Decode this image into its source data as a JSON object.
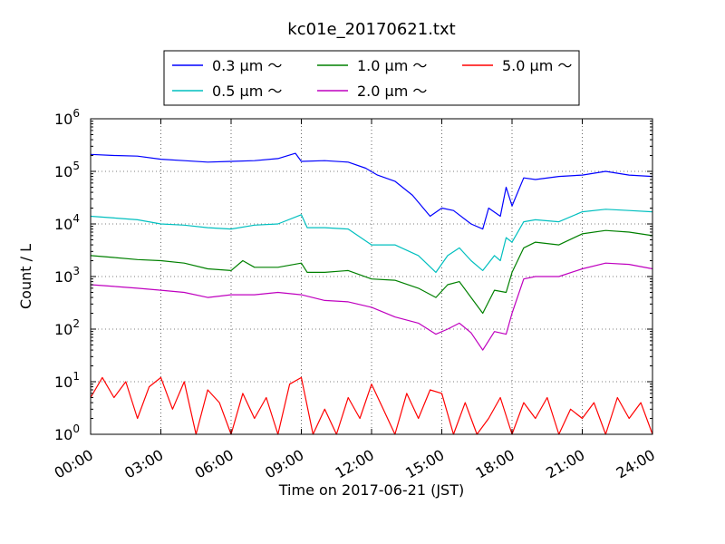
{
  "chart_data": {
    "type": "line",
    "title": "kc01e_20170621.txt",
    "xlabel": "Time on 2017-06-21 (JST)",
    "ylabel": "Count / L",
    "yscale": "log",
    "ylim": [
      1,
      1000000
    ],
    "xlim": [
      "00:00",
      "24:00"
    ],
    "x_ticks": [
      "00:00",
      "03:00",
      "06:00",
      "09:00",
      "12:00",
      "15:00",
      "18:00",
      "21:00",
      "24:00"
    ],
    "y_ticks": [
      {
        "base": "10",
        "exp": "0"
      },
      {
        "base": "10",
        "exp": "1"
      },
      {
        "base": "10",
        "exp": "2"
      },
      {
        "base": "10",
        "exp": "3"
      },
      {
        "base": "10",
        "exp": "4"
      },
      {
        "base": "10",
        "exp": "5"
      },
      {
        "base": "10",
        "exp": "6"
      }
    ],
    "grid": true,
    "legend_position": "above plot",
    "series": [
      {
        "name": "0.3 μm ～",
        "color": "#0000ff",
        "points": [
          [
            "00:00",
            210000
          ],
          [
            "01:00",
            200000
          ],
          [
            "02:00",
            195000
          ],
          [
            "03:00",
            170000
          ],
          [
            "04:00",
            160000
          ],
          [
            "05:00",
            150000
          ],
          [
            "06:00",
            155000
          ],
          [
            "07:00",
            160000
          ],
          [
            "08:00",
            175000
          ],
          [
            "08:45",
            220000
          ],
          [
            "09:00",
            155000
          ],
          [
            "10:00",
            160000
          ],
          [
            "11:00",
            150000
          ],
          [
            "11:45",
            115000
          ],
          [
            "12:15",
            85000
          ],
          [
            "13:00",
            65000
          ],
          [
            "13:45",
            35000
          ],
          [
            "14:30",
            14000
          ],
          [
            "15:00",
            20000
          ],
          [
            "15:30",
            18000
          ],
          [
            "16:15",
            10000
          ],
          [
            "16:45",
            8000
          ],
          [
            "17:00",
            20000
          ],
          [
            "17:30",
            14000
          ],
          [
            "17:45",
            50000
          ],
          [
            "18:00",
            22000
          ],
          [
            "18:30",
            75000
          ],
          [
            "19:00",
            70000
          ],
          [
            "20:00",
            80000
          ],
          [
            "21:00",
            85000
          ],
          [
            "22:00",
            100000
          ],
          [
            "23:00",
            85000
          ],
          [
            "24:00",
            80000
          ]
        ]
      },
      {
        "name": "0.5 μm ～",
        "color": "#00bfbf",
        "points": [
          [
            "00:00",
            14000
          ],
          [
            "01:00",
            13000
          ],
          [
            "02:00",
            12000
          ],
          [
            "03:00",
            10000
          ],
          [
            "04:00",
            9500
          ],
          [
            "05:00",
            8500
          ],
          [
            "06:00",
            8000
          ],
          [
            "07:00",
            9500
          ],
          [
            "08:00",
            10000
          ],
          [
            "09:00",
            15000
          ],
          [
            "09:15",
            8500
          ],
          [
            "10:00",
            8500
          ],
          [
            "11:00",
            8000
          ],
          [
            "12:00",
            4000
          ],
          [
            "13:00",
            4000
          ],
          [
            "14:00",
            2500
          ],
          [
            "14:45",
            1200
          ],
          [
            "15:15",
            2500
          ],
          [
            "15:45",
            3500
          ],
          [
            "16:15",
            2000
          ],
          [
            "16:45",
            1300
          ],
          [
            "17:15",
            2500
          ],
          [
            "17:30",
            2000
          ],
          [
            "17:45",
            5500
          ],
          [
            "18:00",
            4500
          ],
          [
            "18:30",
            11000
          ],
          [
            "19:00",
            12000
          ],
          [
            "20:00",
            11000
          ],
          [
            "21:00",
            17000
          ],
          [
            "22:00",
            19000
          ],
          [
            "23:00",
            18000
          ],
          [
            "24:00",
            17000
          ]
        ]
      },
      {
        "name": "1.0 μm ～",
        "color": "#008000",
        "points": [
          [
            "00:00",
            2500
          ],
          [
            "01:00",
            2300
          ],
          [
            "02:00",
            2100
          ],
          [
            "03:00",
            2000
          ],
          [
            "04:00",
            1800
          ],
          [
            "05:00",
            1400
          ],
          [
            "06:00",
            1300
          ],
          [
            "06:30",
            2000
          ],
          [
            "07:00",
            1500
          ],
          [
            "08:00",
            1500
          ],
          [
            "09:00",
            1800
          ],
          [
            "09:15",
            1200
          ],
          [
            "10:00",
            1200
          ],
          [
            "11:00",
            1300
          ],
          [
            "12:00",
            900
          ],
          [
            "13:00",
            850
          ],
          [
            "14:00",
            600
          ],
          [
            "14:45",
            400
          ],
          [
            "15:15",
            700
          ],
          [
            "15:45",
            800
          ],
          [
            "16:15",
            400
          ],
          [
            "16:45",
            200
          ],
          [
            "17:15",
            550
          ],
          [
            "17:45",
            500
          ],
          [
            "18:00",
            1200
          ],
          [
            "18:30",
            3500
          ],
          [
            "19:00",
            4500
          ],
          [
            "20:00",
            4000
          ],
          [
            "21:00",
            6500
          ],
          [
            "22:00",
            7500
          ],
          [
            "23:00",
            7000
          ],
          [
            "24:00",
            6000
          ]
        ]
      },
      {
        "name": "2.0 μm ～",
        "color": "#bf00bf",
        "points": [
          [
            "00:00",
            700
          ],
          [
            "01:00",
            650
          ],
          [
            "02:00",
            600
          ],
          [
            "03:00",
            550
          ],
          [
            "04:00",
            500
          ],
          [
            "05:00",
            400
          ],
          [
            "06:00",
            450
          ],
          [
            "07:00",
            450
          ],
          [
            "08:00",
            500
          ],
          [
            "09:00",
            450
          ],
          [
            "10:00",
            350
          ],
          [
            "11:00",
            330
          ],
          [
            "12:00",
            260
          ],
          [
            "13:00",
            170
          ],
          [
            "14:00",
            130
          ],
          [
            "14:45",
            80
          ],
          [
            "15:15",
            100
          ],
          [
            "15:45",
            130
          ],
          [
            "16:15",
            85
          ],
          [
            "16:45",
            40
          ],
          [
            "17:15",
            90
          ],
          [
            "17:45",
            80
          ],
          [
            "18:00",
            200
          ],
          [
            "18:30",
            900
          ],
          [
            "19:00",
            1000
          ],
          [
            "20:00",
            1000
          ],
          [
            "21:00",
            1400
          ],
          [
            "22:00",
            1800
          ],
          [
            "23:00",
            1700
          ],
          [
            "24:00",
            1400
          ]
        ]
      },
      {
        "name": "5.0 μm ～",
        "color": "#ff0000",
        "points": [
          [
            "00:00",
            5
          ],
          [
            "00:30",
            12
          ],
          [
            "01:00",
            5
          ],
          [
            "01:30",
            10
          ],
          [
            "02:00",
            2
          ],
          [
            "02:30",
            8
          ],
          [
            "03:00",
            12
          ],
          [
            "03:30",
            3
          ],
          [
            "04:00",
            10
          ],
          [
            "04:30",
            1
          ],
          [
            "05:00",
            7
          ],
          [
            "05:30",
            4
          ],
          [
            "06:00",
            1
          ],
          [
            "06:30",
            6
          ],
          [
            "07:00",
            2
          ],
          [
            "07:30",
            5
          ],
          [
            "08:00",
            1
          ],
          [
            "08:30",
            9
          ],
          [
            "09:00",
            12
          ],
          [
            "09:30",
            1
          ],
          [
            "10:00",
            3
          ],
          [
            "10:30",
            1
          ],
          [
            "11:00",
            5
          ],
          [
            "11:30",
            2
          ],
          [
            "12:00",
            9
          ],
          [
            "12:30",
            3
          ],
          [
            "13:00",
            1
          ],
          [
            "13:30",
            6
          ],
          [
            "14:00",
            2
          ],
          [
            "14:30",
            7
          ],
          [
            "15:00",
            6
          ],
          [
            "15:30",
            1
          ],
          [
            "16:00",
            4
          ],
          [
            "16:30",
            1
          ],
          [
            "17:00",
            2
          ],
          [
            "17:30",
            5
          ],
          [
            "18:00",
            1
          ],
          [
            "18:30",
            4
          ],
          [
            "19:00",
            2
          ],
          [
            "19:30",
            5
          ],
          [
            "20:00",
            1
          ],
          [
            "20:30",
            3
          ],
          [
            "21:00",
            2
          ],
          [
            "21:30",
            4
          ],
          [
            "22:00",
            1
          ],
          [
            "22:30",
            5
          ],
          [
            "23:00",
            2
          ],
          [
            "23:30",
            4
          ],
          [
            "24:00",
            1
          ]
        ]
      }
    ]
  }
}
